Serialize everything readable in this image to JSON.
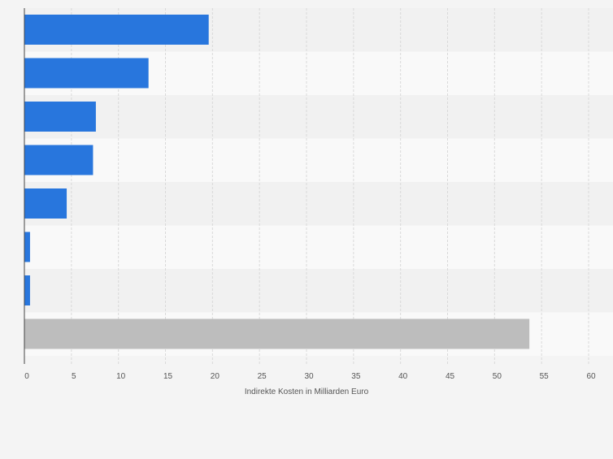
{
  "colors": {
    "page_background": "#f4f4f4",
    "band_light": "#f9f9f9",
    "band_dark": "#f1f1f1",
    "grid": "#d9d9d9",
    "axis": "#444444",
    "tick_text": "#555555",
    "bar_primary": "#2876dd",
    "bar_total": "#bdbdbd"
  },
  "chart_data": {
    "type": "bar",
    "orientation": "horizontal",
    "categories": [
      "",
      "",
      "",
      "",
      "",
      "",
      "",
      ""
    ],
    "values": [
      19.6,
      13.2,
      7.6,
      7.3,
      4.5,
      0.6,
      0.6,
      53.7
    ],
    "bar_colors": [
      "#2876dd",
      "#2876dd",
      "#2876dd",
      "#2876dd",
      "#2876dd",
      "#2876dd",
      "#2876dd",
      "#bdbdbd"
    ],
    "xlabel": "Indirekte Kosten in Milliarden Euro",
    "ylabel": "",
    "xlim": [
      0,
      60
    ],
    "xticks": [
      0,
      5,
      10,
      15,
      20,
      25,
      30,
      35,
      40,
      45,
      50,
      55,
      60
    ],
    "xtick_labels": [
      "0",
      "5",
      "10",
      "15",
      "20",
      "25",
      "30",
      "35",
      "40",
      "45",
      "50",
      "55",
      "60"
    ],
    "grid": true,
    "legend": "none"
  }
}
